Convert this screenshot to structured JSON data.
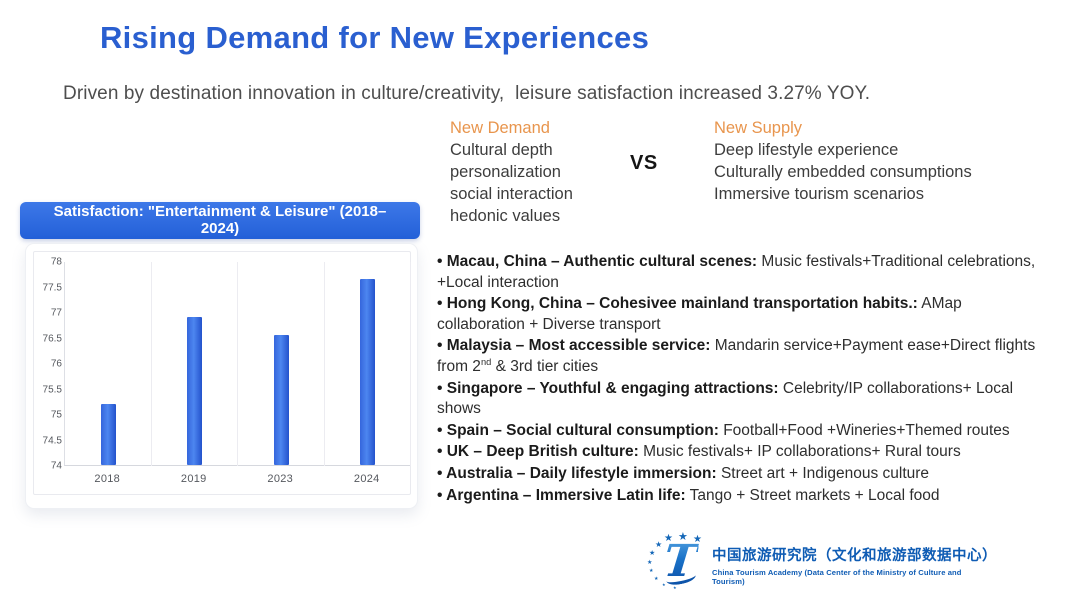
{
  "title": "Rising Demand for New Experiences",
  "subtitle": "Driven by destination innovation in culture/creativity,  leisure satisfaction increased 3.27% YOY.",
  "comparison": {
    "demand": {
      "heading": "New Demand",
      "items": [
        "Cultural depth",
        "personalization",
        "social interaction",
        "hedonic values"
      ]
    },
    "vs_label": "VS",
    "supply": {
      "heading": "New Supply",
      "items": [
        "Deep lifestyle experience",
        "Culturally embedded consumptions",
        "Immersive tourism scenarios"
      ]
    }
  },
  "chart_banner": "Satisfaction: \"Entertainment & Leisure\" (2018–2024)",
  "chart_data": {
    "type": "bar",
    "title": "Satisfaction: \"Entertainment & Leisure\" (2018–2024)",
    "categories": [
      "2018",
      "2019",
      "2023",
      "2024"
    ],
    "values": [
      75.2,
      76.9,
      76.55,
      77.65
    ],
    "xlabel": "",
    "ylabel": "",
    "ylim": [
      74,
      78
    ],
    "ytick_step": 0.5,
    "grid": "vertical category separators, light gray",
    "legend": "none",
    "bar_color": "#2f62dd"
  },
  "bullet_marker": "•",
  "bullets": [
    {
      "lead": "Macau, China – Authentic cultural scenes:",
      "desc": [
        {
          "text": " Music festivals+Traditional celebrations, +Local interaction"
        }
      ]
    },
    {
      "lead": "Hong Kong, China – Cohesivee mainland transportation habits.:",
      "desc": [
        {
          "text": " AMap collaboration + Diverse transport"
        }
      ]
    },
    {
      "lead": "Malaysia – Most accessible service:",
      "desc": [
        {
          "text": " Mandarin service+Payment ease+Direct flights from 2"
        },
        {
          "text": "nd",
          "sup": true
        },
        {
          "text": " & 3rd tier cities"
        }
      ]
    },
    {
      "lead": "Singapore – Youthful & engaging attractions:",
      "desc": [
        {
          "text": " Celebrity/IP collaborations+ Local shows"
        }
      ]
    },
    {
      "lead": "Spain – Social cultural consumption:",
      "desc": [
        {
          "text": " Football+Food +Wineries+Themed routes"
        }
      ]
    },
    {
      "lead": "UK – Deep British culture:",
      "desc": [
        {
          "text": " Music festivals+ IP collaborations+ Rural tours"
        }
      ]
    },
    {
      "lead": "Australia – Daily lifestyle immersion:",
      "desc": [
        {
          "text": " Street art + Indigenous culture"
        }
      ]
    },
    {
      "lead": "Argentina – Immersive Latin life:",
      "desc": [
        {
          "text": " Tango + Street markets + Local food"
        }
      ]
    }
  ],
  "footer": {
    "logo_letter": "T",
    "org_cn": "中国旅游研究院（文化和旅游部数据中心）",
    "org_en": "China Tourism Academy (Data Center of the Ministry of Culture and Tourism)"
  },
  "colors": {
    "title_blue": "#2a5fd0",
    "banner_blue": "#2e6ae2",
    "accent_orange": "#e8954d",
    "bar_blue": "#2f62dd",
    "logo_blue": "#0f5cb4",
    "body_text": "#2e2e2e"
  }
}
